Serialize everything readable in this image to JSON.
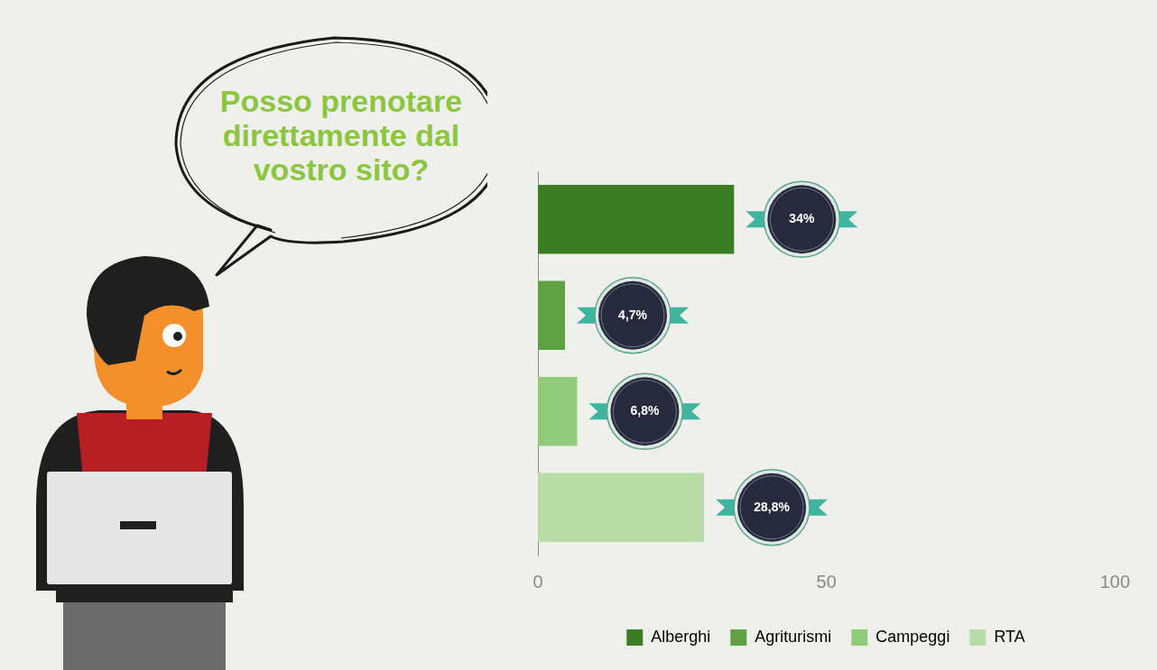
{
  "chart_data": {
    "type": "bar",
    "orientation": "horizontal",
    "annotations": [
      {
        "text": "Posso prenotare direttamente dal vostro sito?"
      }
    ],
    "categories": [
      "Alberghi",
      "Agriturismi",
      "Campeggi",
      "RTA"
    ],
    "values": [
      34,
      4.7,
      6.8,
      28.8
    ],
    "value_labels": [
      "34%",
      "4,7%",
      "6,8%",
      "28,8%"
    ],
    "colors": [
      "#3b7d23",
      "#5ea243",
      "#8fcb7a",
      "#b7dca6"
    ],
    "xlim": [
      0,
      100
    ],
    "xticks": [
      0,
      50,
      100
    ],
    "grid": false,
    "legend": "bottom",
    "data_labels": true,
    "tick_labels": "x"
  }
}
